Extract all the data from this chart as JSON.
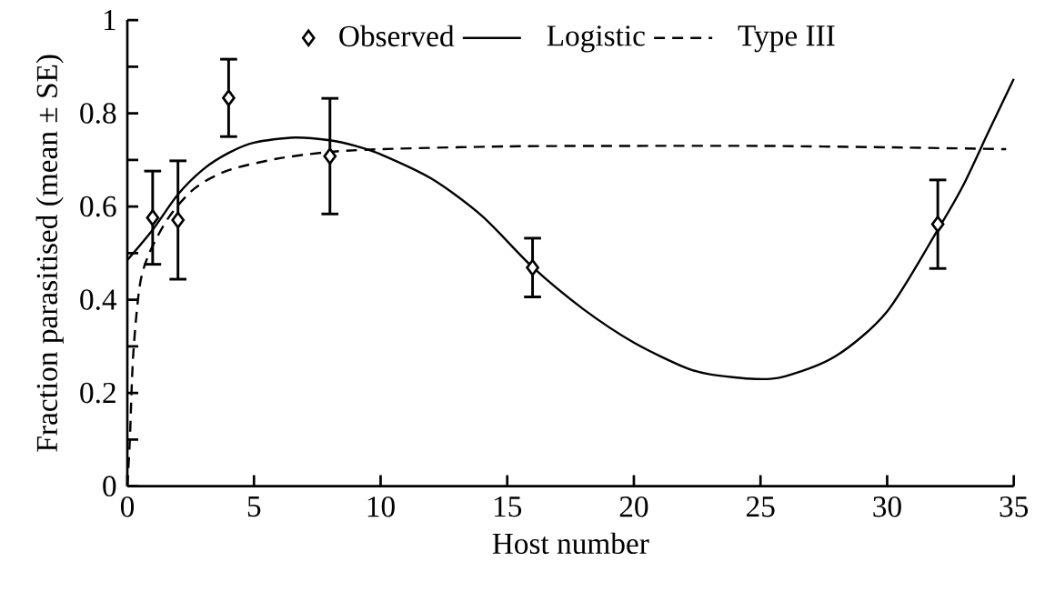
{
  "chart_data": {
    "type": "scatter",
    "xlabel": "Host number",
    "ylabel": "Fraction parasitised (mean ± SE)",
    "xlim": [
      0,
      35
    ],
    "ylim": [
      0,
      1
    ],
    "xticks": [
      0,
      5,
      10,
      15,
      20,
      25,
      30,
      35
    ],
    "yticks": [
      0,
      {
        "value": 0.1,
        "label": null
      },
      0.2,
      {
        "value": 0.3,
        "label": null
      },
      0.4,
      {
        "value": 0.5,
        "label": null
      },
      0.6,
      {
        "value": 0.7,
        "label": null
      },
      0.8,
      {
        "value": 0.9,
        "label": null
      },
      1
    ],
    "legend": "top",
    "series": [
      {
        "name": "Observed",
        "color": "#000000",
        "marker": "diamond",
        "x": [
          1,
          2,
          4,
          8,
          16,
          32
        ],
        "values": [
          0.576,
          0.571,
          0.833,
          0.708,
          0.469,
          0.562
        ],
        "errors": [
          0.1,
          0.127,
          0.083,
          0.124,
          0.063,
          0.095
        ]
      },
      {
        "name": "Logistic",
        "type": "line",
        "color": "#000000",
        "marker": "none",
        "line_style": "solid",
        "x": [
          0,
          1,
          2,
          3,
          4,
          5,
          6.6,
          8,
          9,
          10,
          12,
          14,
          16,
          18,
          20,
          22,
          23,
          24.8,
          26,
          28,
          30,
          32,
          33,
          34,
          35
        ],
        "values": [
          0.485,
          0.55,
          0.626,
          0.68,
          0.715,
          0.737,
          0.748,
          0.742,
          0.73,
          0.712,
          0.66,
          0.58,
          0.47,
          0.38,
          0.308,
          0.255,
          0.24,
          0.23,
          0.236,
          0.28,
          0.375,
          0.55,
          0.645,
          0.76,
          0.874
        ]
      },
      {
        "name": "Type III",
        "type": "line",
        "color": "#000000",
        "marker": "none",
        "line_style": "dashed",
        "x": [
          0,
          0.1,
          0.23,
          0.49,
          0.87,
          1.64,
          2.66,
          3.95,
          5.87,
          7.79,
          10,
          15,
          20,
          25,
          30,
          34.7
        ],
        "values": [
          0,
          0.1,
          0.28,
          0.43,
          0.5,
          0.577,
          0.639,
          0.677,
          0.702,
          0.716,
          0.723,
          0.729,
          0.73,
          0.73,
          0.727,
          0.723
        ]
      }
    ]
  }
}
